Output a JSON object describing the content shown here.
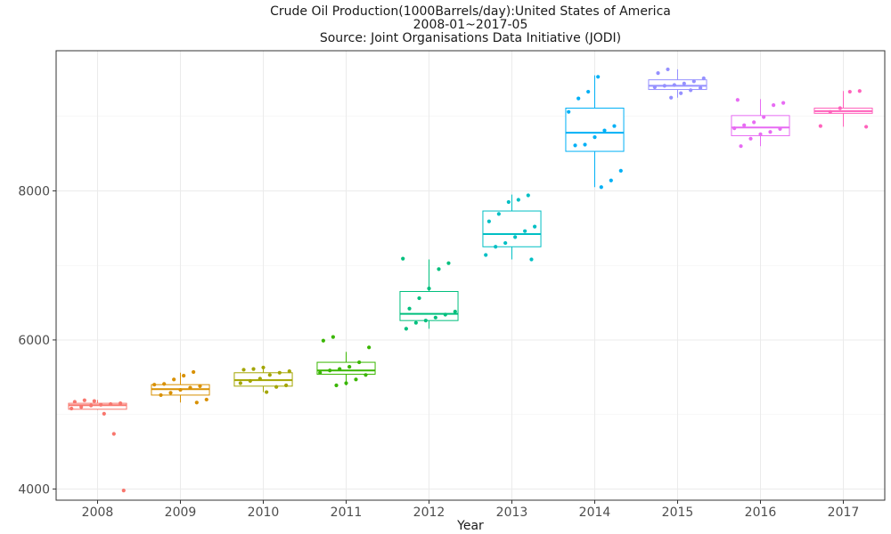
{
  "chart_data": {
    "type": "box",
    "title": [
      "Crude Oil Production(1000Barrels/day):United States of America",
      "2008-01~2017-05",
      "Source: Joint Organisations Data Initiative (JODI)"
    ],
    "xlabel": "Year",
    "ylabel": "",
    "ylim": [
      3850,
      9880
    ],
    "yticks": [
      4000,
      6000,
      8000
    ],
    "grid": true,
    "legend": "none",
    "categories": [
      "2008",
      "2009",
      "2010",
      "2011",
      "2012",
      "2013",
      "2014",
      "2015",
      "2016",
      "2017"
    ],
    "colors": [
      "#F8766D",
      "#D89000",
      "#A3A500",
      "#39B600",
      "#00BF7D",
      "#00BFC4",
      "#00B0F6",
      "#9590FF",
      "#E76BF3",
      "#FF62BC"
    ],
    "boxes": [
      {
        "year": "2008",
        "q1": 5070,
        "median": 5125,
        "q3": 5150,
        "whisker_low": 5060,
        "whisker_high": 5195,
        "points": [
          5080,
          5100,
          5120,
          5130,
          5140,
          5150,
          5170,
          5190,
          5180,
          5010,
          4740,
          3980
        ]
      },
      {
        "year": "2009",
        "q1": 5260,
        "median": 5340,
        "q3": 5400,
        "whisker_low": 5160,
        "whisker_high": 5560,
        "points": [
          5160,
          5200,
          5260,
          5290,
          5330,
          5360,
          5380,
          5400,
          5410,
          5470,
          5520,
          5570
        ]
      },
      {
        "year": "2010",
        "q1": 5380,
        "median": 5460,
        "q3": 5560,
        "whisker_low": 5300,
        "whisker_high": 5640,
        "points": [
          5300,
          5370,
          5390,
          5420,
          5450,
          5480,
          5530,
          5560,
          5580,
          5600,
          5610,
          5630
        ]
      },
      {
        "year": "2011",
        "q1": 5540,
        "median": 5590,
        "q3": 5700,
        "whisker_low": 5390,
        "whisker_high": 5840,
        "points": [
          5390,
          5420,
          5470,
          5530,
          5560,
          5590,
          5610,
          5640,
          5700,
          5900,
          5990,
          6040
        ]
      },
      {
        "year": "2012",
        "q1": 6260,
        "median": 6350,
        "q3": 6650,
        "whisker_low": 6150,
        "whisker_high": 7080,
        "points": [
          6150,
          6230,
          6260,
          6300,
          6340,
          6380,
          6420,
          6560,
          6690,
          6950,
          7030,
          7090
        ]
      },
      {
        "year": "2013",
        "q1": 7250,
        "median": 7420,
        "q3": 7730,
        "whisker_low": 7080,
        "whisker_high": 7950,
        "points": [
          7080,
          7140,
          7250,
          7300,
          7380,
          7460,
          7520,
          7590,
          7690,
          7850,
          7880,
          7940
        ]
      },
      {
        "year": "2014",
        "q1": 8530,
        "median": 8780,
        "q3": 9110,
        "whisker_low": 8050,
        "whisker_high": 9550,
        "points": [
          8050,
          8140,
          8270,
          8610,
          8620,
          8720,
          8810,
          8870,
          9060,
          9240,
          9330,
          9530
        ]
      },
      {
        "year": "2015",
        "q1": 9360,
        "median": 9410,
        "q3": 9490,
        "whisker_low": 9250,
        "whisker_high": 9630,
        "points": [
          9250,
          9310,
          9350,
          9380,
          9390,
          9410,
          9420,
          9440,
          9470,
          9510,
          9580,
          9630
        ]
      },
      {
        "year": "2016",
        "q1": 8740,
        "median": 8850,
        "q3": 9010,
        "whisker_low": 8600,
        "whisker_high": 9230,
        "points": [
          8600,
          8700,
          8760,
          8790,
          8830,
          8840,
          8880,
          8920,
          8990,
          9150,
          9180,
          9220
        ]
      },
      {
        "year": "2017",
        "q1": 9040,
        "median": 9070,
        "q3": 9110,
        "whisker_low": 8860,
        "whisker_high": 9340,
        "points": [
          8860,
          8870,
          9060,
          9110,
          9330,
          9340
        ]
      }
    ]
  }
}
